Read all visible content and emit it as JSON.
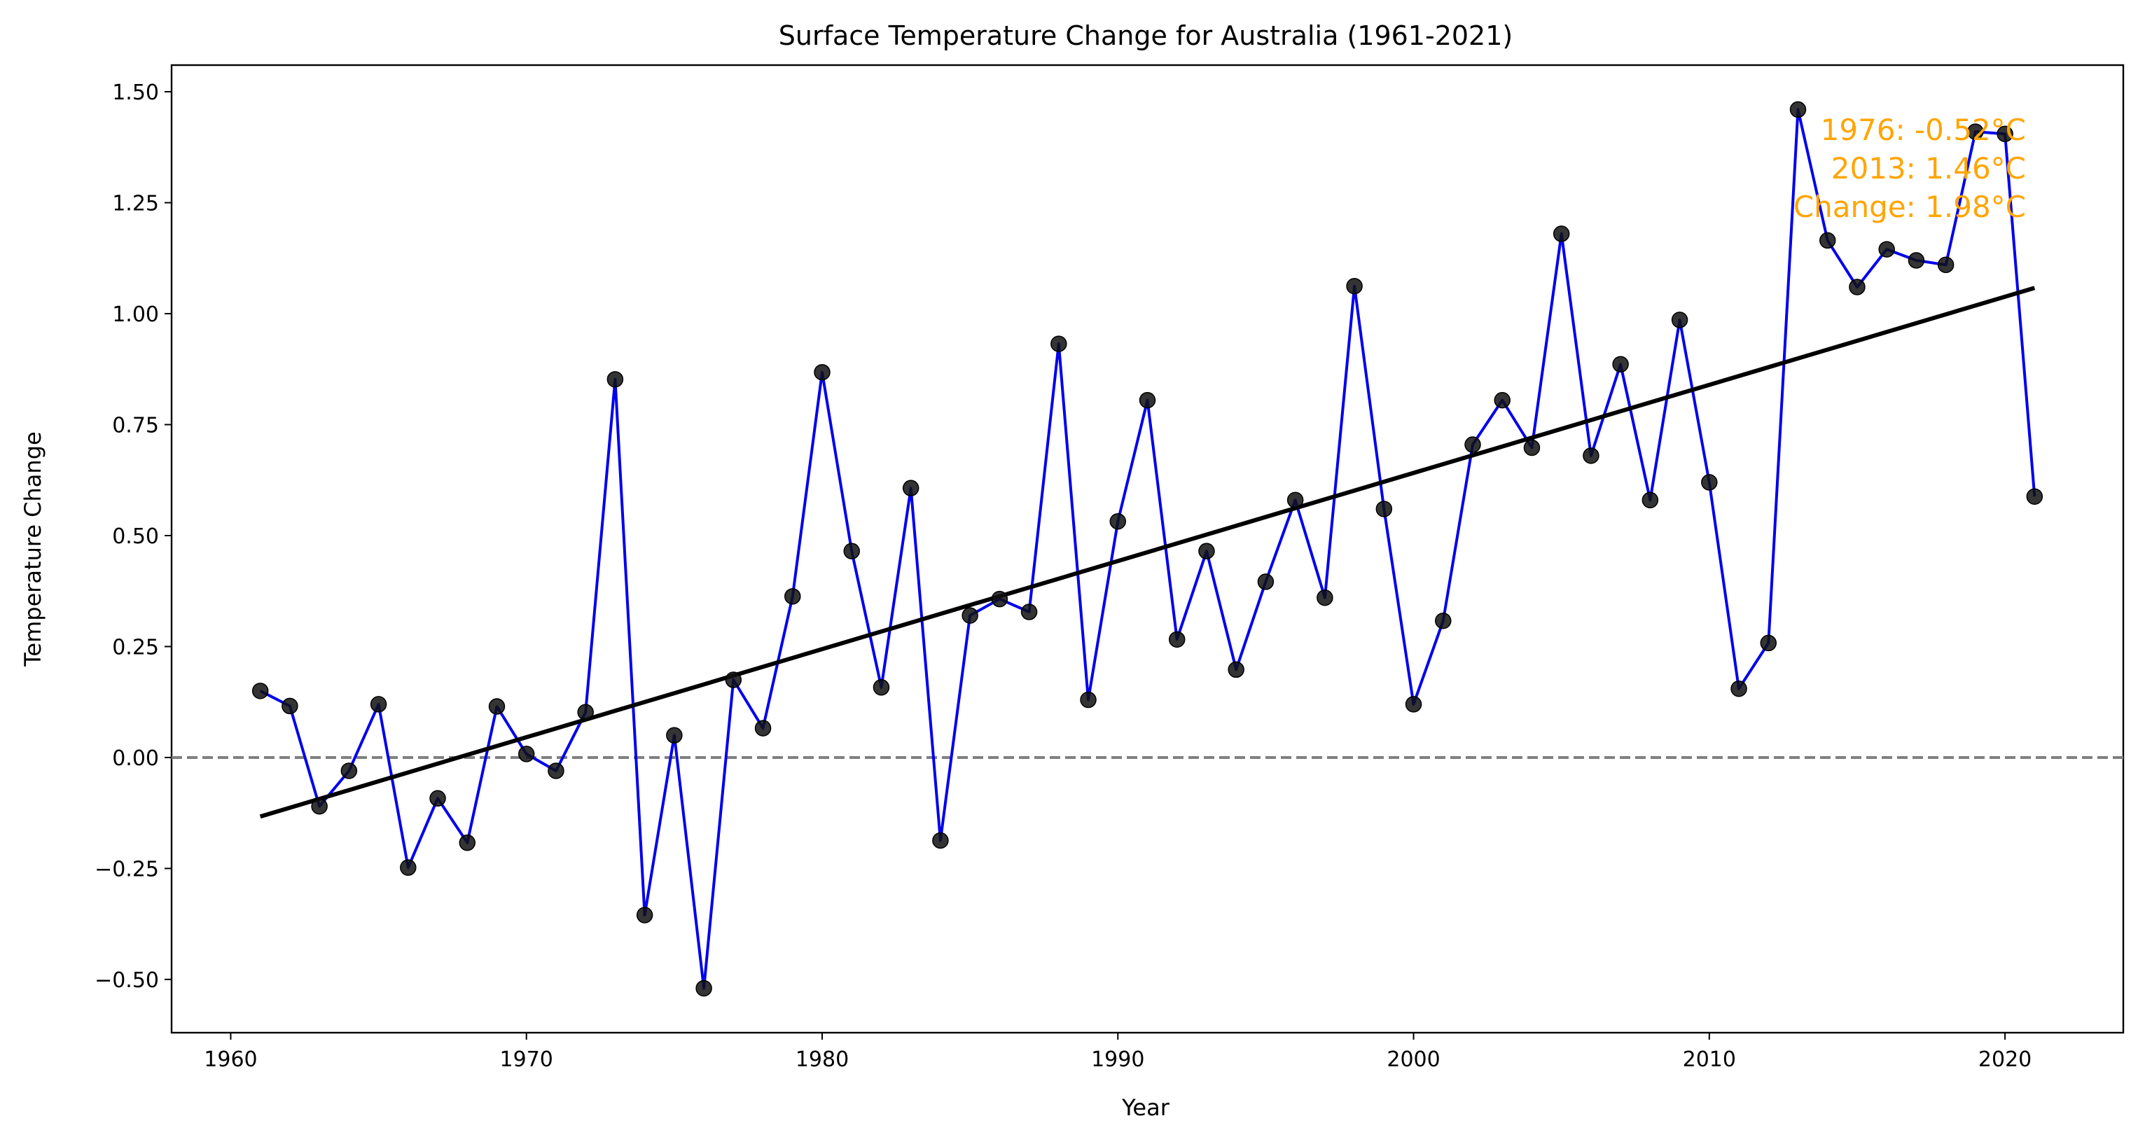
{
  "chart_data": {
    "type": "line",
    "title": "Surface Temperature Change for Australia (1961-2021)",
    "xlabel": "Year",
    "ylabel": "Temperature Change",
    "xlim": [
      1958.0,
      2024.0
    ],
    "ylim": [
      -0.62,
      1.56
    ],
    "x_ticks": [
      1960,
      1970,
      1980,
      1990,
      2000,
      2010,
      2020
    ],
    "y_ticks": [
      -0.5,
      -0.25,
      0.0,
      0.25,
      0.5,
      0.75,
      1.0,
      1.25,
      1.5
    ],
    "y_tick_labels": [
      "−0.50",
      "−0.25",
      "0.00",
      "0.25",
      "0.50",
      "0.75",
      "1.00",
      "1.25",
      "1.50"
    ],
    "grid": false,
    "series": [
      {
        "x": [
          1961,
          1962,
          1963,
          1964,
          1965,
          1966,
          1967,
          1968,
          1969,
          1970,
          1971,
          1972,
          1973,
          1974,
          1975,
          1976,
          1977,
          1978,
          1979,
          1980,
          1981,
          1982,
          1983,
          1984,
          1985,
          1986,
          1987,
          1988,
          1989,
          1990,
          1991,
          1992,
          1993,
          1994,
          1995,
          1996,
          1997,
          1998,
          1999,
          2000,
          2001,
          2002,
          2003,
          2004,
          2005,
          2006,
          2007,
          2008,
          2009,
          2010,
          2011,
          2012,
          2013,
          2014,
          2015,
          2016,
          2017,
          2018,
          2019,
          2020,
          2021
        ],
        "values": [
          0.15,
          0.116,
          -0.11,
          -0.03,
          0.12,
          -0.248,
          -0.092,
          -0.192,
          0.115,
          0.008,
          -0.03,
          0.102,
          0.852,
          -0.355,
          0.05,
          -0.52,
          0.175,
          0.066,
          0.363,
          0.868,
          0.465,
          0.158,
          0.607,
          -0.187,
          0.32,
          0.357,
          0.328,
          0.932,
          0.13,
          0.532,
          0.805,
          0.266,
          0.465,
          0.198,
          0.396,
          0.58,
          0.36,
          1.062,
          0.56,
          0.12,
          0.308,
          0.705,
          0.805,
          0.698,
          1.18,
          0.68,
          0.886,
          0.58,
          0.986,
          0.62,
          0.155,
          0.258,
          1.46,
          1.165,
          1.06,
          1.145,
          1.12,
          1.11,
          1.41,
          1.405,
          0.588
        ],
        "line_color": "#0000ee",
        "marker_color": "#111111"
      }
    ],
    "trend_line": {
      "x": [
        1961,
        2021
      ],
      "y": [
        -0.133,
        1.058
      ],
      "color": "#000000"
    },
    "reference_line": {
      "y": 0.0,
      "style": "dashed",
      "color": "#808080"
    },
    "annotation": {
      "lines": [
        "1976: -0.52°C",
        "2013: 1.46°C",
        "Change: 1.98°C"
      ],
      "color": "#ffa500",
      "placement": "top-right"
    }
  }
}
